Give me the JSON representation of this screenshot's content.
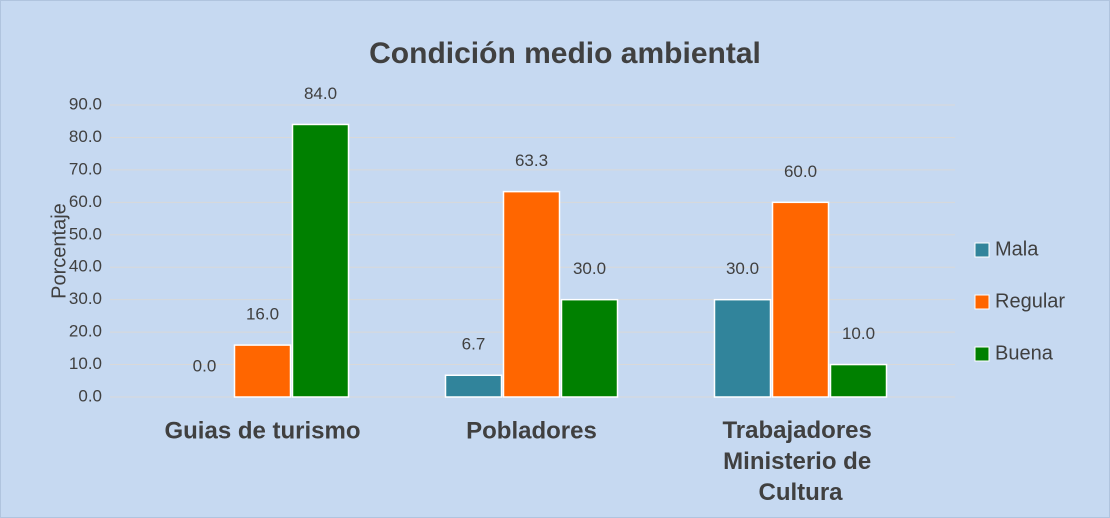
{
  "chart_data": {
    "type": "bar",
    "title": "Condición medio ambiental",
    "y_label": "Porcentaje",
    "categories": [
      "Guias de turismo",
      "Pobladores",
      "Trabajadores Ministerio de Cultura"
    ],
    "series": [
      {
        "name": "Mala",
        "color": "#31849b",
        "values": [
          0,
          6.7,
          30
        ],
        "value_labels": [
          "0.0",
          "6.7",
          "30.0"
        ]
      },
      {
        "name": "Regular",
        "color": "#ff6600",
        "values": [
          16,
          63.3,
          60
        ],
        "value_labels": [
          "16.0",
          "63.3",
          "60.0"
        ]
      },
      {
        "name": "Buena",
        "color": "#008000",
        "values": [
          84,
          30,
          10
        ],
        "value_labels": [
          "84.0",
          "30.0",
          "10.0"
        ]
      }
    ],
    "ylim": [
      0,
      90
    ],
    "yticks": [
      {
        "value": 0,
        "label": "0.0"
      },
      {
        "value": 10,
        "label": "10.0"
      },
      {
        "value": 20,
        "label": "20.0"
      },
      {
        "value": 30,
        "label": "30.0"
      },
      {
        "value": 40,
        "label": "40.0"
      },
      {
        "value": 50,
        "label": "50.0"
      },
      {
        "value": 60,
        "label": "60.0"
      },
      {
        "value": 70,
        "label": "70.0"
      },
      {
        "value": 80,
        "label": "80.0"
      },
      {
        "value": 90,
        "label": "90.0"
      }
    ],
    "grid": true,
    "legend": "right"
  }
}
